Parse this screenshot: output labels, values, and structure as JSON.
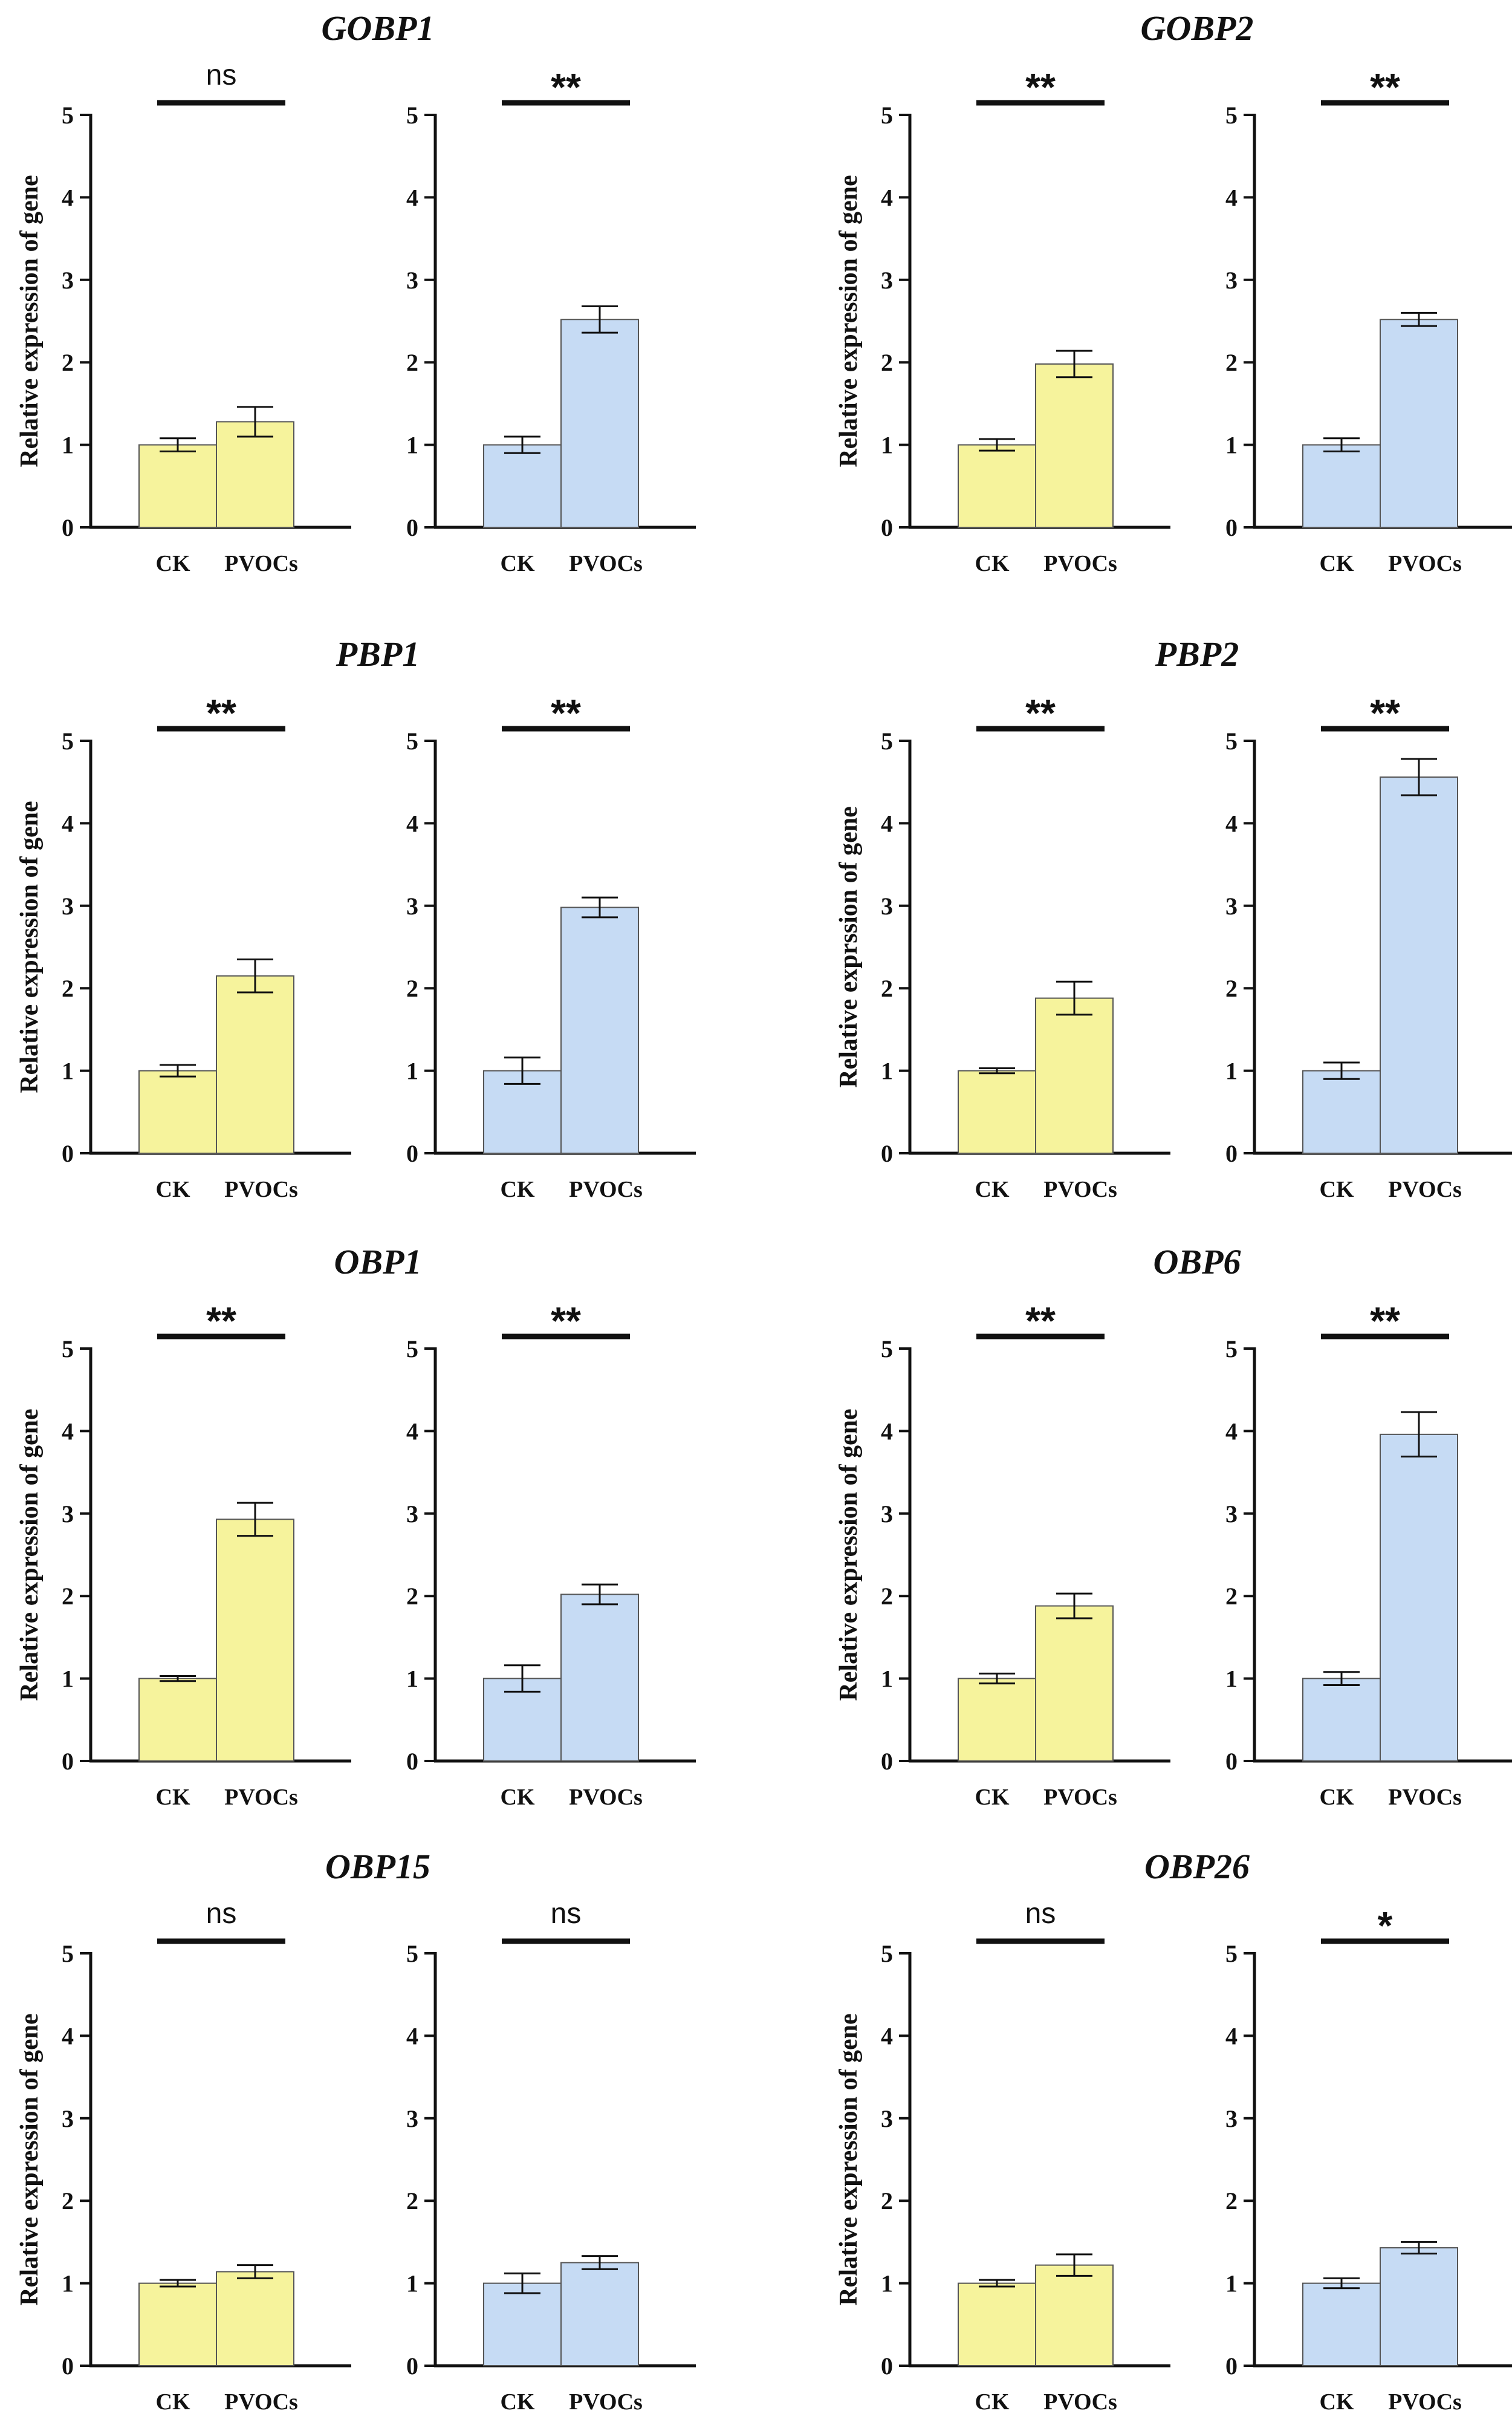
{
  "figure": {
    "y_axis_label": "Relative expression of gene",
    "y_axis_label_alt": "Relative exprssion of gene",
    "categories": [
      "CK",
      "PVOCs"
    ],
    "colors": {
      "yellow": "#f6f39c",
      "blue": "#c6dbf4",
      "stroke": "#555555",
      "axis": "#111111"
    }
  },
  "chart_data": [
    {
      "gene": "GOBP1",
      "type": "bar",
      "panels": [
        {
          "color": "yellow",
          "categories": [
            "CK",
            "PVOCs"
          ],
          "values": [
            1.0,
            1.28
          ],
          "errors": [
            0.08,
            0.18
          ],
          "significance": "ns",
          "ylim": [
            0,
            5
          ],
          "yticks": [
            0,
            1,
            2,
            3,
            4,
            5
          ]
        },
        {
          "color": "blue",
          "categories": [
            "CK",
            "PVOCs"
          ],
          "values": [
            1.0,
            2.52
          ],
          "errors": [
            0.1,
            0.16
          ],
          "significance": "**",
          "ylim": [
            0,
            5
          ],
          "yticks": [
            0,
            1,
            2,
            3,
            4,
            5
          ]
        }
      ]
    },
    {
      "gene": "GOBP2",
      "type": "bar",
      "panels": [
        {
          "color": "yellow",
          "categories": [
            "CK",
            "PVOCs"
          ],
          "values": [
            1.0,
            1.98
          ],
          "errors": [
            0.07,
            0.16
          ],
          "significance": "**",
          "ylim": [
            0,
            5
          ],
          "yticks": [
            0,
            1,
            2,
            3,
            4,
            5
          ]
        },
        {
          "color": "blue",
          "categories": [
            "CK",
            "PVOCs"
          ],
          "values": [
            1.0,
            2.52
          ],
          "errors": [
            0.08,
            0.08
          ],
          "significance": "**",
          "ylim": [
            0,
            5
          ],
          "yticks": [
            0,
            1,
            2,
            3,
            4,
            5
          ]
        }
      ]
    },
    {
      "gene": "PBP1",
      "type": "bar",
      "panels": [
        {
          "color": "yellow",
          "categories": [
            "CK",
            "PVOCs"
          ],
          "values": [
            1.0,
            2.15
          ],
          "errors": [
            0.07,
            0.2
          ],
          "significance": "**",
          "ylim": [
            0,
            5
          ],
          "yticks": [
            0,
            1,
            2,
            3,
            4,
            5
          ]
        },
        {
          "color": "blue",
          "categories": [
            "CK",
            "PVOCs"
          ],
          "values": [
            1.0,
            2.98
          ],
          "errors": [
            0.16,
            0.12
          ],
          "significance": "**",
          "ylim": [
            0,
            5
          ],
          "yticks": [
            0,
            1,
            2,
            3,
            4,
            5
          ]
        }
      ]
    },
    {
      "gene": "PBP2",
      "type": "bar",
      "y_label_variant": "alt",
      "panels": [
        {
          "color": "yellow",
          "categories": [
            "CK",
            "PVOCs"
          ],
          "values": [
            1.0,
            1.88
          ],
          "errors": [
            0.03,
            0.2
          ],
          "significance": "**",
          "ylim": [
            0,
            5
          ],
          "yticks": [
            0,
            1,
            2,
            3,
            4,
            5
          ]
        },
        {
          "color": "blue",
          "categories": [
            "CK",
            "PVOCs"
          ],
          "values": [
            1.0,
            4.56
          ],
          "errors": [
            0.1,
            0.22
          ],
          "significance": "**",
          "ylim": [
            0,
            5
          ],
          "yticks": [
            0,
            1,
            2,
            3,
            4,
            5
          ]
        }
      ]
    },
    {
      "gene": "OBP1",
      "type": "bar",
      "panels": [
        {
          "color": "yellow",
          "categories": [
            "CK",
            "PVOCs"
          ],
          "values": [
            1.0,
            2.93
          ],
          "errors": [
            0.03,
            0.2
          ],
          "significance": "**",
          "ylim": [
            0,
            5
          ],
          "yticks": [
            0,
            1,
            2,
            3,
            4,
            5
          ]
        },
        {
          "color": "blue",
          "categories": [
            "CK",
            "PVOCs"
          ],
          "values": [
            1.0,
            2.02
          ],
          "errors": [
            0.16,
            0.12
          ],
          "significance": "**",
          "ylim": [
            0,
            5
          ],
          "yticks": [
            0,
            1,
            2,
            3,
            4,
            5
          ]
        }
      ]
    },
    {
      "gene": "OBP6",
      "type": "bar",
      "panels": [
        {
          "color": "yellow",
          "categories": [
            "CK",
            "PVOCs"
          ],
          "values": [
            1.0,
            1.88
          ],
          "errors": [
            0.06,
            0.15
          ],
          "significance": "**",
          "ylim": [
            0,
            5
          ],
          "yticks": [
            0,
            1,
            2,
            3,
            4,
            5
          ]
        },
        {
          "color": "blue",
          "categories": [
            "CK",
            "PVOCs"
          ],
          "values": [
            1.0,
            3.96
          ],
          "errors": [
            0.08,
            0.27
          ],
          "significance": "**",
          "ylim": [
            0,
            5
          ],
          "yticks": [
            0,
            1,
            2,
            3,
            4,
            5
          ]
        }
      ]
    },
    {
      "gene": "OBP15",
      "type": "bar",
      "panels": [
        {
          "color": "yellow",
          "categories": [
            "CK",
            "PVOCs"
          ],
          "values": [
            1.0,
            1.14
          ],
          "errors": [
            0.04,
            0.08
          ],
          "significance": "ns",
          "ylim": [
            0,
            5
          ],
          "yticks": [
            0,
            1,
            2,
            3,
            4,
            5
          ]
        },
        {
          "color": "blue",
          "categories": [
            "CK",
            "PVOCs"
          ],
          "values": [
            1.0,
            1.25
          ],
          "errors": [
            0.12,
            0.08
          ],
          "significance": "ns",
          "ylim": [
            0,
            5
          ],
          "yticks": [
            0,
            1,
            2,
            3,
            4,
            5
          ]
        }
      ]
    },
    {
      "gene": "OBP26",
      "type": "bar",
      "panels": [
        {
          "color": "yellow",
          "categories": [
            "CK",
            "PVOCs"
          ],
          "values": [
            1.0,
            1.22
          ],
          "errors": [
            0.04,
            0.13
          ],
          "significance": "ns",
          "ylim": [
            0,
            5
          ],
          "yticks": [
            0,
            1,
            2,
            3,
            4,
            5
          ]
        },
        {
          "color": "blue",
          "categories": [
            "CK",
            "PVOCs"
          ],
          "values": [
            1.0,
            1.43
          ],
          "errors": [
            0.06,
            0.07
          ],
          "significance": "*",
          "ylim": [
            0,
            5
          ],
          "yticks": [
            0,
            1,
            2,
            3,
            4,
            5
          ]
        }
      ]
    }
  ]
}
